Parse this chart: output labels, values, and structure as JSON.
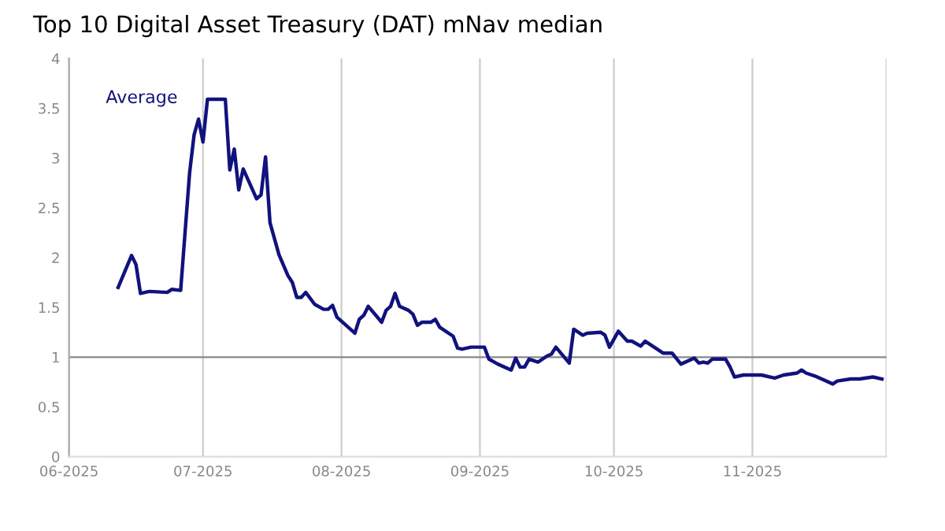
{
  "chart_data": {
    "type": "line",
    "title": "Top 10 Digital Asset Treasury (DAT) mNav median",
    "x": [
      "2025-06-12",
      "2025-06-15",
      "2025-06-16",
      "2025-06-17",
      "2025-06-19",
      "2025-06-23",
      "2025-06-24",
      "2025-06-26",
      "2025-06-28",
      "2025-06-29",
      "2025-06-30",
      "2025-07-01",
      "2025-07-02",
      "2025-07-06",
      "2025-07-07",
      "2025-07-08",
      "2025-07-09",
      "2025-07-10",
      "2025-07-13",
      "2025-07-14",
      "2025-07-15",
      "2025-07-16",
      "2025-07-18",
      "2025-07-20",
      "2025-07-21",
      "2025-07-22",
      "2025-07-23",
      "2025-07-24",
      "2025-07-26",
      "2025-07-28",
      "2025-07-29",
      "2025-07-30",
      "2025-07-31",
      "2025-08-04",
      "2025-08-05",
      "2025-08-06",
      "2025-08-07",
      "2025-08-10",
      "2025-08-11",
      "2025-08-12",
      "2025-08-13",
      "2025-08-14",
      "2025-08-16",
      "2025-08-17",
      "2025-08-18",
      "2025-08-19",
      "2025-08-21",
      "2025-08-22",
      "2025-08-23",
      "2025-08-26",
      "2025-08-27",
      "2025-08-28",
      "2025-08-30",
      "2025-09-02",
      "2025-09-03",
      "2025-09-05",
      "2025-09-08",
      "2025-09-09",
      "2025-09-10",
      "2025-09-11",
      "2025-09-12",
      "2025-09-14",
      "2025-09-16",
      "2025-09-17",
      "2025-09-18",
      "2025-09-21",
      "2025-09-22",
      "2025-09-24",
      "2025-09-25",
      "2025-09-28",
      "2025-09-29",
      "2025-09-30",
      "2025-10-02",
      "2025-10-04",
      "2025-10-05",
      "2025-10-07",
      "2025-10-08",
      "2025-10-12",
      "2025-10-14",
      "2025-10-16",
      "2025-10-19",
      "2025-10-20",
      "2025-10-21",
      "2025-10-22",
      "2025-10-23",
      "2025-10-26",
      "2025-10-27",
      "2025-10-28",
      "2025-10-30",
      "2025-11-03",
      "2025-11-06",
      "2025-11-08",
      "2025-11-11",
      "2025-11-12",
      "2025-11-13",
      "2025-11-15",
      "2025-11-19",
      "2025-11-20",
      "2025-11-23",
      "2025-11-25",
      "2025-11-28",
      "2025-11-30"
    ],
    "series": [
      {
        "name": "Average",
        "color": "#12127e",
        "values": [
          1.7,
          2.02,
          1.93,
          1.64,
          1.66,
          1.65,
          1.68,
          1.67,
          2.85,
          3.23,
          3.39,
          3.16,
          3.59,
          3.59,
          2.88,
          3.09,
          2.68,
          2.89,
          2.59,
          2.63,
          3.01,
          2.35,
          2.03,
          1.82,
          1.75,
          1.6,
          1.6,
          1.65,
          1.53,
          1.48,
          1.48,
          1.52,
          1.4,
          1.24,
          1.38,
          1.42,
          1.51,
          1.35,
          1.47,
          1.51,
          1.64,
          1.51,
          1.47,
          1.43,
          1.32,
          1.35,
          1.35,
          1.38,
          1.3,
          1.21,
          1.09,
          1.08,
          1.1,
          1.1,
          0.98,
          0.93,
          0.87,
          0.99,
          0.9,
          0.9,
          0.98,
          0.95,
          1.01,
          1.03,
          1.1,
          0.94,
          1.28,
          1.22,
          1.24,
          1.25,
          1.22,
          1.1,
          1.26,
          1.16,
          1.16,
          1.11,
          1.16,
          1.04,
          1.04,
          0.93,
          0.99,
          0.94,
          0.95,
          0.94,
          0.98,
          0.98,
          0.9,
          0.8,
          0.82,
          0.82,
          0.79,
          0.82,
          0.84,
          0.87,
          0.84,
          0.81,
          0.73,
          0.76,
          0.78,
          0.78,
          0.8,
          0.78
        ]
      }
    ],
    "xlim": [
      "2025-06-01",
      "2025-12-01"
    ],
    "xticks": [
      {
        "value": "2025-06-01",
        "label": "06-2025"
      },
      {
        "value": "2025-07-01",
        "label": "07-2025"
      },
      {
        "value": "2025-08-01",
        "label": "08-2025"
      },
      {
        "value": "2025-09-01",
        "label": "09-2025"
      },
      {
        "value": "2025-10-01",
        "label": "10-2025"
      },
      {
        "value": "2025-11-01",
        "label": "11-2025"
      },
      {
        "value": "2025-12-01",
        "label": null
      }
    ],
    "ylim": [
      0,
      4
    ],
    "yticks": [
      0,
      0.5,
      1,
      1.5,
      2,
      2.5,
      3,
      3.5,
      4
    ],
    "grid": "x",
    "line_style": "solid",
    "marker": "none",
    "ref_lines": [
      {
        "axis": "y",
        "value": 1,
        "color": "#888888"
      }
    ]
  }
}
